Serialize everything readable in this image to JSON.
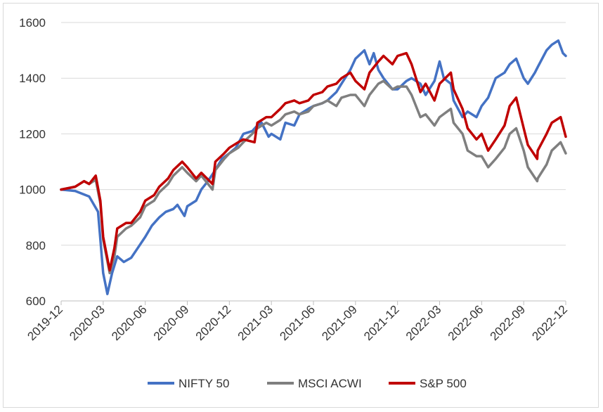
{
  "chart_data": {
    "type": "line",
    "title": "",
    "xlabel": "",
    "ylabel": "",
    "ylim": [
      600,
      1600
    ],
    "yticks": [
      600,
      800,
      1000,
      1200,
      1400,
      1600
    ],
    "xticks": [
      "2019-12",
      "2020-03",
      "2020-06",
      "2020-09",
      "2020-12",
      "2021-03",
      "2021-06",
      "2021-09",
      "2021-12",
      "2022-03",
      "2022-06",
      "2022-09",
      "2022-12"
    ],
    "grid": {
      "horizontal": true,
      "vertical": false
    },
    "legend_position": "bottom",
    "series": [
      {
        "name": "NIFTY 50",
        "color": "#4472C4",
        "points": [
          [
            "2019-12",
            1000
          ],
          [
            "2020-01",
            995
          ],
          [
            "2020-02",
            975
          ],
          [
            "2020-02-20",
            920
          ],
          [
            "2020-03",
            700
          ],
          [
            "2020-03-10",
            625
          ],
          [
            "2020-03-20",
            700
          ],
          [
            "2020-04",
            760
          ],
          [
            "2020-04-15",
            740
          ],
          [
            "2020-05",
            755
          ],
          [
            "2020-05-15",
            790
          ],
          [
            "2020-06",
            830
          ],
          [
            "2020-06-15",
            870
          ],
          [
            "2020-07",
            900
          ],
          [
            "2020-07-15",
            920
          ],
          [
            "2020-08",
            930
          ],
          [
            "2020-08-10",
            945
          ],
          [
            "2020-08-25",
            905
          ],
          [
            "2020-09",
            940
          ],
          [
            "2020-09-20",
            960
          ],
          [
            "2020-10",
            1000
          ],
          [
            "2020-10-15",
            1030
          ],
          [
            "2020-11",
            1070
          ],
          [
            "2020-11-15",
            1110
          ],
          [
            "2020-12",
            1130
          ],
          [
            "2020-12-15",
            1150
          ],
          [
            "2021-01",
            1200
          ],
          [
            "2021-01-20",
            1210
          ],
          [
            "2021-02",
            1230
          ],
          [
            "2021-02-10",
            1240
          ],
          [
            "2021-02-25",
            1190
          ],
          [
            "2021-03",
            1200
          ],
          [
            "2021-03-20",
            1180
          ],
          [
            "2021-04",
            1240
          ],
          [
            "2021-04-20",
            1230
          ],
          [
            "2021-05",
            1270
          ],
          [
            "2021-05-20",
            1290
          ],
          [
            "2021-06",
            1300
          ],
          [
            "2021-06-20",
            1310
          ],
          [
            "2021-07",
            1320
          ],
          [
            "2021-07-20",
            1350
          ],
          [
            "2021-08",
            1380
          ],
          [
            "2021-08-20",
            1430
          ],
          [
            "2021-09",
            1470
          ],
          [
            "2021-09-20",
            1500
          ],
          [
            "2021-10",
            1450
          ],
          [
            "2021-10-10",
            1490
          ],
          [
            "2021-10-20",
            1430
          ],
          [
            "2021-11",
            1400
          ],
          [
            "2021-11-20",
            1360
          ],
          [
            "2021-12",
            1360
          ],
          [
            "2021-12-20",
            1390
          ],
          [
            "2022-01",
            1400
          ],
          [
            "2022-01-20",
            1380
          ],
          [
            "2022-02",
            1340
          ],
          [
            "2022-02-20",
            1390
          ],
          [
            "2022-03",
            1460
          ],
          [
            "2022-03-10",
            1400
          ],
          [
            "2022-03-25",
            1380
          ],
          [
            "2022-04",
            1320
          ],
          [
            "2022-04-20",
            1260
          ],
          [
            "2022-05",
            1280
          ],
          [
            "2022-05-20",
            1260
          ],
          [
            "2022-06",
            1300
          ],
          [
            "2022-06-15",
            1330
          ],
          [
            "2022-07",
            1400
          ],
          [
            "2022-07-20",
            1420
          ],
          [
            "2022-08",
            1450
          ],
          [
            "2022-08-15",
            1470
          ],
          [
            "2022-09",
            1400
          ],
          [
            "2022-09-10",
            1380
          ],
          [
            "2022-09-25",
            1420
          ],
          [
            "2022-10",
            1440
          ],
          [
            "2022-10-20",
            1500
          ],
          [
            "2022-11",
            1520
          ],
          [
            "2022-11-15",
            1535
          ],
          [
            "2022-11-25",
            1490
          ],
          [
            "2022-12",
            1480
          ]
        ]
      },
      {
        "name": "MSCI ACWI",
        "color": "#7F7F7F",
        "points": [
          [
            "2019-12",
            1000
          ],
          [
            "2020-01",
            1010
          ],
          [
            "2020-01-20",
            1030
          ],
          [
            "2020-02",
            1020
          ],
          [
            "2020-02-15",
            1035
          ],
          [
            "2020-02-25",
            950
          ],
          [
            "2020-03",
            820
          ],
          [
            "2020-03-15",
            700
          ],
          [
            "2020-03-25",
            760
          ],
          [
            "2020-04",
            830
          ],
          [
            "2020-04-20",
            860
          ],
          [
            "2020-05",
            870
          ],
          [
            "2020-05-20",
            900
          ],
          [
            "2020-06",
            940
          ],
          [
            "2020-06-20",
            960
          ],
          [
            "2020-07",
            990
          ],
          [
            "2020-07-20",
            1020
          ],
          [
            "2020-08",
            1050
          ],
          [
            "2020-08-20",
            1080
          ],
          [
            "2020-09",
            1060
          ],
          [
            "2020-09-20",
            1030
          ],
          [
            "2020-10",
            1050
          ],
          [
            "2020-10-25",
            1000
          ],
          [
            "2020-11",
            1070
          ],
          [
            "2020-11-20",
            1110
          ],
          [
            "2020-12",
            1130
          ],
          [
            "2020-12-20",
            1150
          ],
          [
            "2021-01",
            1170
          ],
          [
            "2021-01-20",
            1200
          ],
          [
            "2021-02",
            1220
          ],
          [
            "2021-02-20",
            1240
          ],
          [
            "2021-03",
            1230
          ],
          [
            "2021-03-20",
            1250
          ],
          [
            "2021-04",
            1270
          ],
          [
            "2021-04-20",
            1280
          ],
          [
            "2021-05",
            1270
          ],
          [
            "2021-05-20",
            1280
          ],
          [
            "2021-06",
            1300
          ],
          [
            "2021-06-20",
            1310
          ],
          [
            "2021-07",
            1320
          ],
          [
            "2021-07-20",
            1300
          ],
          [
            "2021-08",
            1330
          ],
          [
            "2021-08-20",
            1340
          ],
          [
            "2021-09",
            1340
          ],
          [
            "2021-09-20",
            1300
          ],
          [
            "2021-10",
            1340
          ],
          [
            "2021-10-20",
            1380
          ],
          [
            "2021-11",
            1390
          ],
          [
            "2021-11-20",
            1360
          ],
          [
            "2021-12",
            1370
          ],
          [
            "2021-12-20",
            1370
          ],
          [
            "2022-01",
            1340
          ],
          [
            "2022-01-20",
            1260
          ],
          [
            "2022-02",
            1270
          ],
          [
            "2022-02-20",
            1230
          ],
          [
            "2022-03",
            1260
          ],
          [
            "2022-03-25",
            1290
          ],
          [
            "2022-04",
            1240
          ],
          [
            "2022-04-20",
            1200
          ],
          [
            "2022-05",
            1140
          ],
          [
            "2022-05-20",
            1120
          ],
          [
            "2022-06",
            1120
          ],
          [
            "2022-06-15",
            1080
          ],
          [
            "2022-07",
            1110
          ],
          [
            "2022-07-20",
            1150
          ],
          [
            "2022-08",
            1200
          ],
          [
            "2022-08-15",
            1220
          ],
          [
            "2022-09",
            1140
          ],
          [
            "2022-09-10",
            1080
          ],
          [
            "2022-09-30",
            1030
          ],
          [
            "2022-10",
            1040
          ],
          [
            "2022-10-20",
            1090
          ],
          [
            "2022-11",
            1140
          ],
          [
            "2022-11-20",
            1170
          ],
          [
            "2022-12",
            1130
          ]
        ]
      },
      {
        "name": "S&P 500",
        "color": "#C00000",
        "points": [
          [
            "2019-12",
            1000
          ],
          [
            "2020-01",
            1010
          ],
          [
            "2020-01-20",
            1030
          ],
          [
            "2020-02",
            1020
          ],
          [
            "2020-02-15",
            1050
          ],
          [
            "2020-02-25",
            960
          ],
          [
            "2020-03",
            830
          ],
          [
            "2020-03-15",
            710
          ],
          [
            "2020-03-25",
            790
          ],
          [
            "2020-04",
            860
          ],
          [
            "2020-04-20",
            880
          ],
          [
            "2020-05",
            880
          ],
          [
            "2020-05-20",
            920
          ],
          [
            "2020-06",
            960
          ],
          [
            "2020-06-20",
            980
          ],
          [
            "2020-07",
            1010
          ],
          [
            "2020-07-20",
            1040
          ],
          [
            "2020-08",
            1070
          ],
          [
            "2020-08-20",
            1100
          ],
          [
            "2020-09",
            1080
          ],
          [
            "2020-09-20",
            1040
          ],
          [
            "2020-10",
            1060
          ],
          [
            "2020-10-25",
            1020
          ],
          [
            "2020-11",
            1100
          ],
          [
            "2020-11-20",
            1130
          ],
          [
            "2020-12",
            1150
          ],
          [
            "2020-12-20",
            1170
          ],
          [
            "2021-01",
            1180
          ],
          [
            "2021-01-25",
            1170
          ],
          [
            "2021-02",
            1240
          ],
          [
            "2021-02-20",
            1260
          ],
          [
            "2021-03",
            1260
          ],
          [
            "2021-03-20",
            1290
          ],
          [
            "2021-04",
            1310
          ],
          [
            "2021-04-20",
            1320
          ],
          [
            "2021-05",
            1310
          ],
          [
            "2021-05-20",
            1320
          ],
          [
            "2021-06",
            1340
          ],
          [
            "2021-06-20",
            1350
          ],
          [
            "2021-07",
            1370
          ],
          [
            "2021-07-20",
            1380
          ],
          [
            "2021-08",
            1400
          ],
          [
            "2021-08-20",
            1420
          ],
          [
            "2021-09",
            1390
          ],
          [
            "2021-09-20",
            1360
          ],
          [
            "2021-10",
            1420
          ],
          [
            "2021-10-20",
            1460
          ],
          [
            "2021-11",
            1480
          ],
          [
            "2021-11-20",
            1450
          ],
          [
            "2021-12",
            1480
          ],
          [
            "2021-12-20",
            1490
          ],
          [
            "2022-01",
            1450
          ],
          [
            "2022-01-20",
            1350
          ],
          [
            "2022-02",
            1380
          ],
          [
            "2022-02-20",
            1320
          ],
          [
            "2022-03",
            1380
          ],
          [
            "2022-03-25",
            1420
          ],
          [
            "2022-04",
            1360
          ],
          [
            "2022-04-20",
            1290
          ],
          [
            "2022-05",
            1220
          ],
          [
            "2022-05-20",
            1180
          ],
          [
            "2022-06",
            1200
          ],
          [
            "2022-06-15",
            1140
          ],
          [
            "2022-07",
            1180
          ],
          [
            "2022-07-20",
            1230
          ],
          [
            "2022-08",
            1300
          ],
          [
            "2022-08-15",
            1330
          ],
          [
            "2022-09",
            1220
          ],
          [
            "2022-09-10",
            1160
          ],
          [
            "2022-09-30",
            1110
          ],
          [
            "2022-10",
            1140
          ],
          [
            "2022-10-20",
            1200
          ],
          [
            "2022-11",
            1240
          ],
          [
            "2022-11-20",
            1260
          ],
          [
            "2022-12",
            1190
          ]
        ]
      }
    ]
  }
}
